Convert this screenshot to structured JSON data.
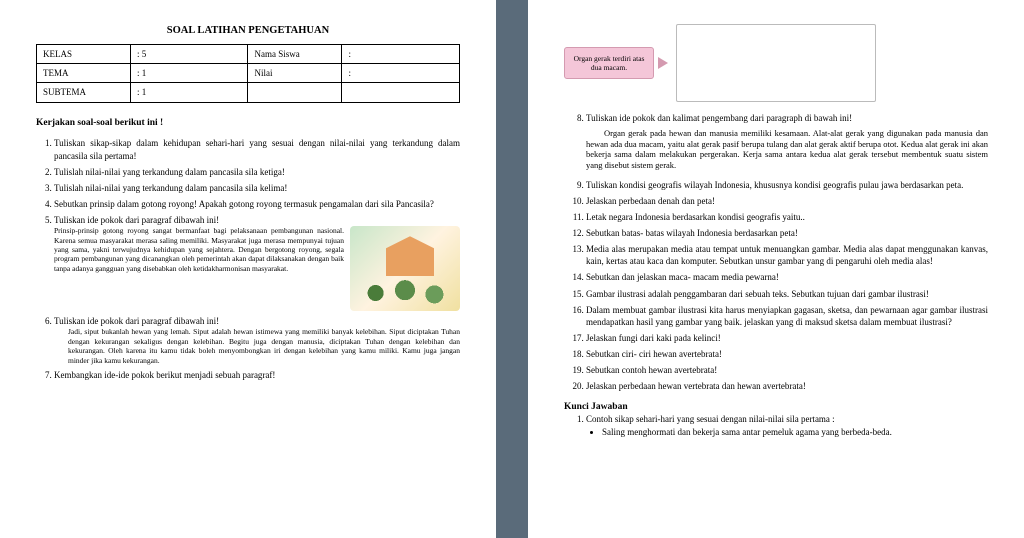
{
  "title": "SOAL LATIHAN PENGETAHUAN",
  "meta": {
    "kelas_label": "KELAS",
    "kelas_val": ": 5",
    "nama_label": "Nama Siswa",
    "nama_val": ":",
    "tema_label": "TEMA",
    "tema_val": ": 1",
    "nilai_label": "Nilai",
    "nilai_val": ":",
    "subtema_label": "SUBTEMA",
    "subtema_val": ": 1"
  },
  "instruction": "Kerjakan soal-soal berikut ini !",
  "q1": "Tuliskan sikap-sikap dalam kehidupan sehari-hari yang sesuai dengan nilai-nilai yang terkandung dalam pancasila sila pertama!",
  "q2": "Tulislah nilai-nilai yang terkandung dalam pancasila sila ketiga!",
  "q3": "Tulislah nilai-nilai yang terkandung dalam pancasila sila kelima!",
  "q4": "Sebutkan prinsip dalam gotong royong! Apakah gotong royong termasuk pengamalan dari sila Pancasila?",
  "q5": "Tuliskan ide pokok dari paragraf dibawah ini!",
  "q5text": "Prinsip-prinsip gotong royong sangat bermanfaat bagi pelaksanaan pembangunan nasional. Karena semua masyarakat merasa saling memiliki. Masyarakat juga merasa mempunyai tujuan yang sama, yakni terwujudnya kehidupan yang sejahtera. Dengan bergotong royong, segala program pembangunan yang dicanangkan oleh pemerintah akan dapat dilaksanakan dengan baik tanpa adanya gangguan yang disebabkan oleh ketidakharmonisan masyarakat.",
  "q6": "Tuliskan ide pokok dari paragraf dibawah ini!",
  "q6text": "Jadi, siput bukanlah hewan yang lemah. Siput adalah hewan istimewa yang memiliki banyak kelebihan. Siput diciptakan Tuhan dengan kekurangan sekaligus dengan kelebihan. Begitu juga dengan manusia, diciptakan Tuhan dengan kelebihan dan kekurangan. Oleh karena itu kamu tidak boleh menyombongkan iri dengan kelebihan yang kamu miliki. Kamu juga jangan minder jika kamu kekurangan.",
  "q7": "Kembangkan ide-ide pokok berikut menjadi sebuah paragraf!",
  "pinkbox": "Organ gerak terdiri atas dua macam.",
  "q8": "Tuliskan ide pokok dan kalimat pengembang dari paragraph di bawah ini!",
  "q8para": "Organ gerak pada hewan dan manusia memiliki kesamaan. Alat-alat gerak yang digunakan pada manusia dan hewan ada dua macam, yaitu alat gerak pasif berupa tulang dan alat gerak aktif berupa otot. Kedua alat gerak ini akan bekerja sama dalam melakukan pergerakan. Kerja sama antara kedua alat gerak tersebut membentuk suatu sistem yang disebut sistem gerak.",
  "q9": "Tuliskan kondisi geografis wilayah Indonesia, khususnya kondisi geografis pulau jawa berdasarkan peta.",
  "q10": "Jelaskan perbedaan denah dan peta!",
  "q11": "Letak negara Indonesia berdasarkan kondisi geografis yaitu..",
  "q12": "Sebutkan batas- batas wilayah Indonesia berdasarkan peta!",
  "q13": "Media alas merupakan media atau tempat untuk menuangkan gambar. Media alas dapat menggunakan kanvas, kain, kertas atau kaca dan komputer. Sebutkan unsur gambar yang di pengaruhi oleh media alas!",
  "q14": "Sebutkan dan jelaskan maca- macam media pewarna!",
  "q15": "Gambar ilustrasi adalah penggambaran dari sebuah teks. Sebutkan tujuan dari gambar ilustrasi!",
  "q16": "Dalam membuat gambar ilustrasi kita harus menyiapkan gagasan, sketsa, dan pewarnaan agar gambar ilustrasi mendapatkan hasil yang gambar yang baik. jelaskan yang di maksud sketsa dalam membuat ilustrasi?",
  "q17": "Jelaskan fungi dari kaki pada kelinci!",
  "q18": "Sebutkan ciri- ciri hewan avertebrata!",
  "q19": "Sebutkan contoh hewan avertebrata!",
  "q20": "Jelaskan perbedaan hewan vertebrata dan hewan avertebrata!",
  "kunci_title": "Kunci Jawaban",
  "ans1": "Contoh sikap sehari-hari yang sesuai dengan nilai-nilai sila pertama :",
  "ans1a": "Saling menghormati dan bekerja sama antar pemeluk agama yang berbeda-beda."
}
